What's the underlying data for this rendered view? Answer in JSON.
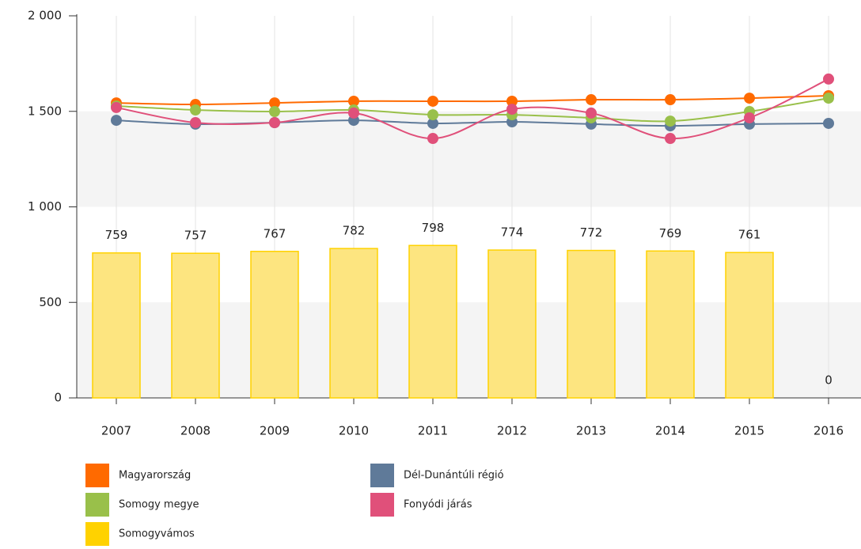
{
  "chart_data": {
    "type": "bar",
    "categories": [
      "2007",
      "2008",
      "2009",
      "2010",
      "2011",
      "2012",
      "2013",
      "2014",
      "2015",
      "2016"
    ],
    "ylim": [
      0,
      2000
    ],
    "yticks": [
      0,
      500,
      {
        "value": 1000,
        "label": "1 000"
      },
      {
        "value": 1500,
        "label": "1 500"
      },
      {
        "value": 2000,
        "label": "2 000"
      }
    ],
    "grid": true,
    "series": [
      {
        "name": "Magyarország",
        "type": "line",
        "color": "#ff6a00",
        "values": [
          1544,
          1536,
          1544,
          1553,
          1553,
          1553,
          1561,
          1561,
          1569,
          1582
        ]
      },
      {
        "name": "Dél-Dunántúli régió",
        "type": "line",
        "color": "#5f7a99",
        "values": [
          1453,
          1433,
          1441,
          1453,
          1437,
          1445,
          1433,
          1424,
          1433,
          1437
        ]
      },
      {
        "name": "Somogy megye",
        "type": "line",
        "color": "#99c04a",
        "values": [
          1528,
          1507,
          1499,
          1507,
          1482,
          1482,
          1466,
          1449,
          1499,
          1569
        ]
      },
      {
        "name": "Fonyódi járás",
        "type": "line",
        "color": "#e0507a",
        "values": [
          1520,
          1441,
          1441,
          1491,
          1358,
          1511,
          1491,
          1358,
          1466,
          1669
        ]
      },
      {
        "name": "Somogyvámos",
        "type": "bar",
        "color": "#ffd200",
        "values": [
          759,
          757,
          767,
          782,
          798,
          774,
          772,
          769,
          761,
          0
        ]
      }
    ]
  }
}
